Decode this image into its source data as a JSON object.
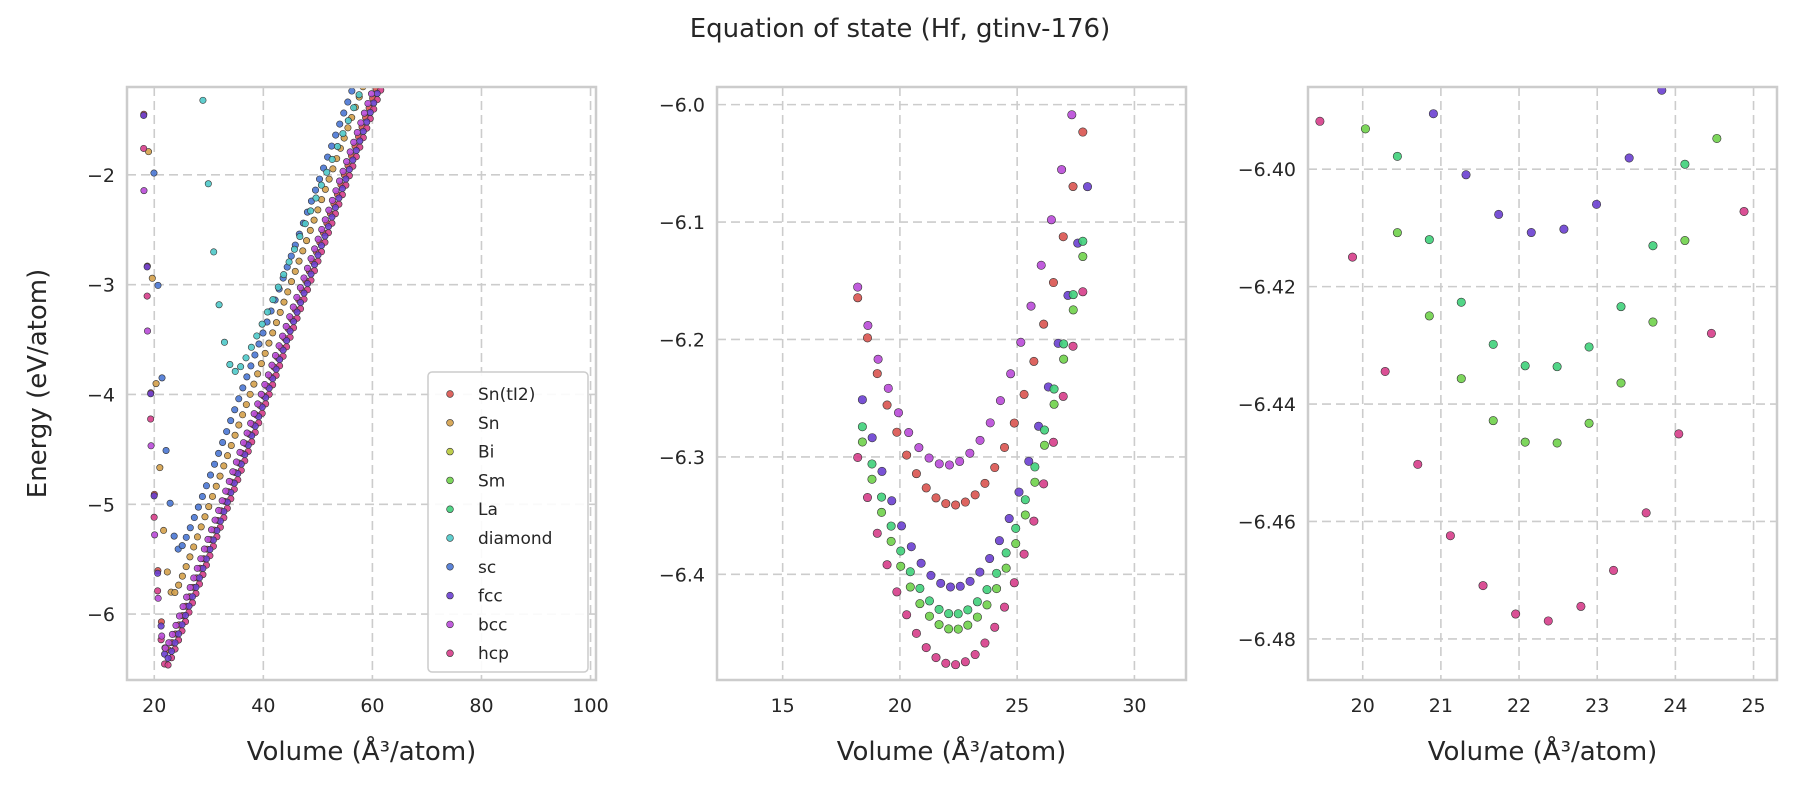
{
  "title": "Equation of state (Hf, gtinv-176)",
  "colors": {
    "Sn(tI2)": "#d9534f",
    "Sn": "#d4a04a",
    "Bi": "#b8c93a",
    "Sm": "#6fd14a",
    "La": "#3fd07a",
    "diamond": "#4ec9c9",
    "sc": "#4a77d4",
    "fcc": "#6a3fd0",
    "bcc": "#b94ad8",
    "hcp": "#d63d8a"
  },
  "chart_data": [
    {
      "type": "scatter",
      "xlabel": "Volume (Å³/atom)",
      "ylabel": "Energy (eV/atom)",
      "xlim": [
        15,
        101
      ],
      "ylim": [
        -6.6,
        -1.2
      ],
      "xticks": [
        20,
        40,
        60,
        80,
        100
      ],
      "yticks": [
        -6,
        -5,
        -4,
        -3,
        -2
      ],
      "xtick_labels": [
        "20",
        "40",
        "60",
        "80",
        "100"
      ],
      "ytick_labels": [
        "−6",
        "−5",
        "−4",
        "−3",
        "−2"
      ],
      "grid": true,
      "legend": [
        "Sn(tI2)",
        "Sn",
        "Bi",
        "Sm",
        "La",
        "diamond",
        "sc",
        "fcc",
        "bcc",
        "hcp"
      ],
      "legend_position": "lower-right",
      "series": [
        {
          "name": "Sn",
          "curve": {
            "e0": -5.82,
            "v0": 23.4,
            "b": 0.37,
            "cap": 0.62,
            "vmin": 15.5,
            "vmax": 70.0,
            "n": 80
          }
        },
        {
          "name": "Sn(tI2)",
          "curve": {
            "e0": -6.34,
            "v0": 22.3,
            "b": 0.5,
            "cap": 0.62,
            "vmin": 15.5,
            "vmax": 66.5,
            "n": 80
          }
        },
        {
          "name": "hcp",
          "curve": {
            "e0": -6.48,
            "v0": 22.2,
            "b": 0.5,
            "cap": 0.62,
            "vmin": 15.5,
            "vmax": 66.0,
            "n": 80
          }
        },
        {
          "name": "sc",
          "curve": {
            "e0": -5.41,
            "v0": 24.5,
            "b": 0.3,
            "cap": 0.62,
            "vmin": 15.5,
            "vmax": 74.0,
            "n": 80
          }
        },
        {
          "name": "fcc",
          "curve": {
            "e0": -6.41,
            "v0": 22.3,
            "b": 0.5,
            "cap": 0.62,
            "vmin": 15.5,
            "vmax": 66.0,
            "n": 80
          }
        },
        {
          "name": "bcc",
          "curve": {
            "e0": -6.31,
            "v0": 22.0,
            "b": 0.5,
            "cap": 0.62,
            "vmin": 15.5,
            "vmax": 67.0,
            "n": 80
          }
        },
        {
          "name": "diamond",
          "curve": {
            "e0": -3.79,
            "v0": 34.8,
            "b": 0.13,
            "cap": 0.55,
            "vmin": 23.0,
            "vmax": 101.0,
            "n": 80
          }
        }
      ]
    },
    {
      "type": "scatter",
      "xlabel": "Volume (Å³/atom)",
      "xlim": [
        12.2,
        32.2
      ],
      "ylim": [
        -6.49,
        -5.985
      ],
      "xticks": [
        15,
        20,
        25,
        30
      ],
      "yticks": [
        -6.0,
        -6.1,
        -6.2,
        -6.3,
        -6.4
      ],
      "xtick_labels": [
        "15",
        "20",
        "25",
        "30"
      ],
      "ytick_labels": [
        "−6.0",
        "−6.1",
        "−6.2",
        "−6.3",
        "−6.4"
      ],
      "grid": true,
      "series": [
        {
          "name": "bcc",
          "curve": {
            "e0": -6.307,
            "v0": 22.0,
            "b": 0.5,
            "vmin": 18.2,
            "vmax": 28.2,
            "n": 24
          }
        },
        {
          "name": "Sn(tI2)",
          "curve": {
            "e0": -6.341,
            "v0": 22.3,
            "b": 0.5,
            "vmin": 18.2,
            "vmax": 27.8,
            "n": 24
          }
        },
        {
          "name": "fcc",
          "curve": {
            "e0": -6.411,
            "v0": 22.3,
            "b": 0.5,
            "vmin": 18.4,
            "vmax": 28.0,
            "n": 24
          }
        },
        {
          "name": "La",
          "curve": {
            "e0": -6.434,
            "v0": 22.3,
            "b": 0.5,
            "vmin": 18.4,
            "vmax": 27.8,
            "n": 24
          }
        },
        {
          "name": "Sm",
          "curve": {
            "e0": -6.447,
            "v0": 22.3,
            "b": 0.5,
            "vmin": 18.4,
            "vmax": 27.8,
            "n": 24
          }
        },
        {
          "name": "hcp",
          "curve": {
            "e0": -6.477,
            "v0": 22.3,
            "b": 0.5,
            "vmin": 18.2,
            "vmax": 27.8,
            "n": 24
          }
        }
      ]
    },
    {
      "type": "scatter",
      "xlabel": "Volume (Å³/atom)",
      "xlim": [
        19.3,
        25.3
      ],
      "ylim": [
        -6.487,
        -6.386
      ],
      "xticks": [
        20,
        21,
        22,
        23,
        24,
        25
      ],
      "yticks": [
        -6.4,
        -6.42,
        -6.44,
        -6.46,
        -6.48
      ],
      "xtick_labels": [
        "20",
        "21",
        "22",
        "23",
        "24",
        "25"
      ],
      "ytick_labels": [
        "−6.40",
        "−6.42",
        "−6.44",
        "−6.46",
        "−6.48"
      ],
      "grid": true,
      "series": [
        {
          "name": "fcc",
          "curve": {
            "e0": -6.411,
            "v0": 22.3,
            "b": 0.5,
            "vmin": 18.4,
            "vmax": 28.0,
            "n": 24
          }
        },
        {
          "name": "La",
          "curve": {
            "e0": -6.434,
            "v0": 22.3,
            "b": 0.5,
            "vmin": 18.4,
            "vmax": 27.8,
            "n": 24
          }
        },
        {
          "name": "Sm",
          "curve": {
            "e0": -6.447,
            "v0": 22.3,
            "b": 0.5,
            "vmin": 18.4,
            "vmax": 27.8,
            "n": 24
          }
        },
        {
          "name": "hcp",
          "curve": {
            "e0": -6.477,
            "v0": 22.3,
            "b": 0.5,
            "vmin": 18.2,
            "vmax": 27.8,
            "n": 24
          }
        }
      ]
    }
  ]
}
